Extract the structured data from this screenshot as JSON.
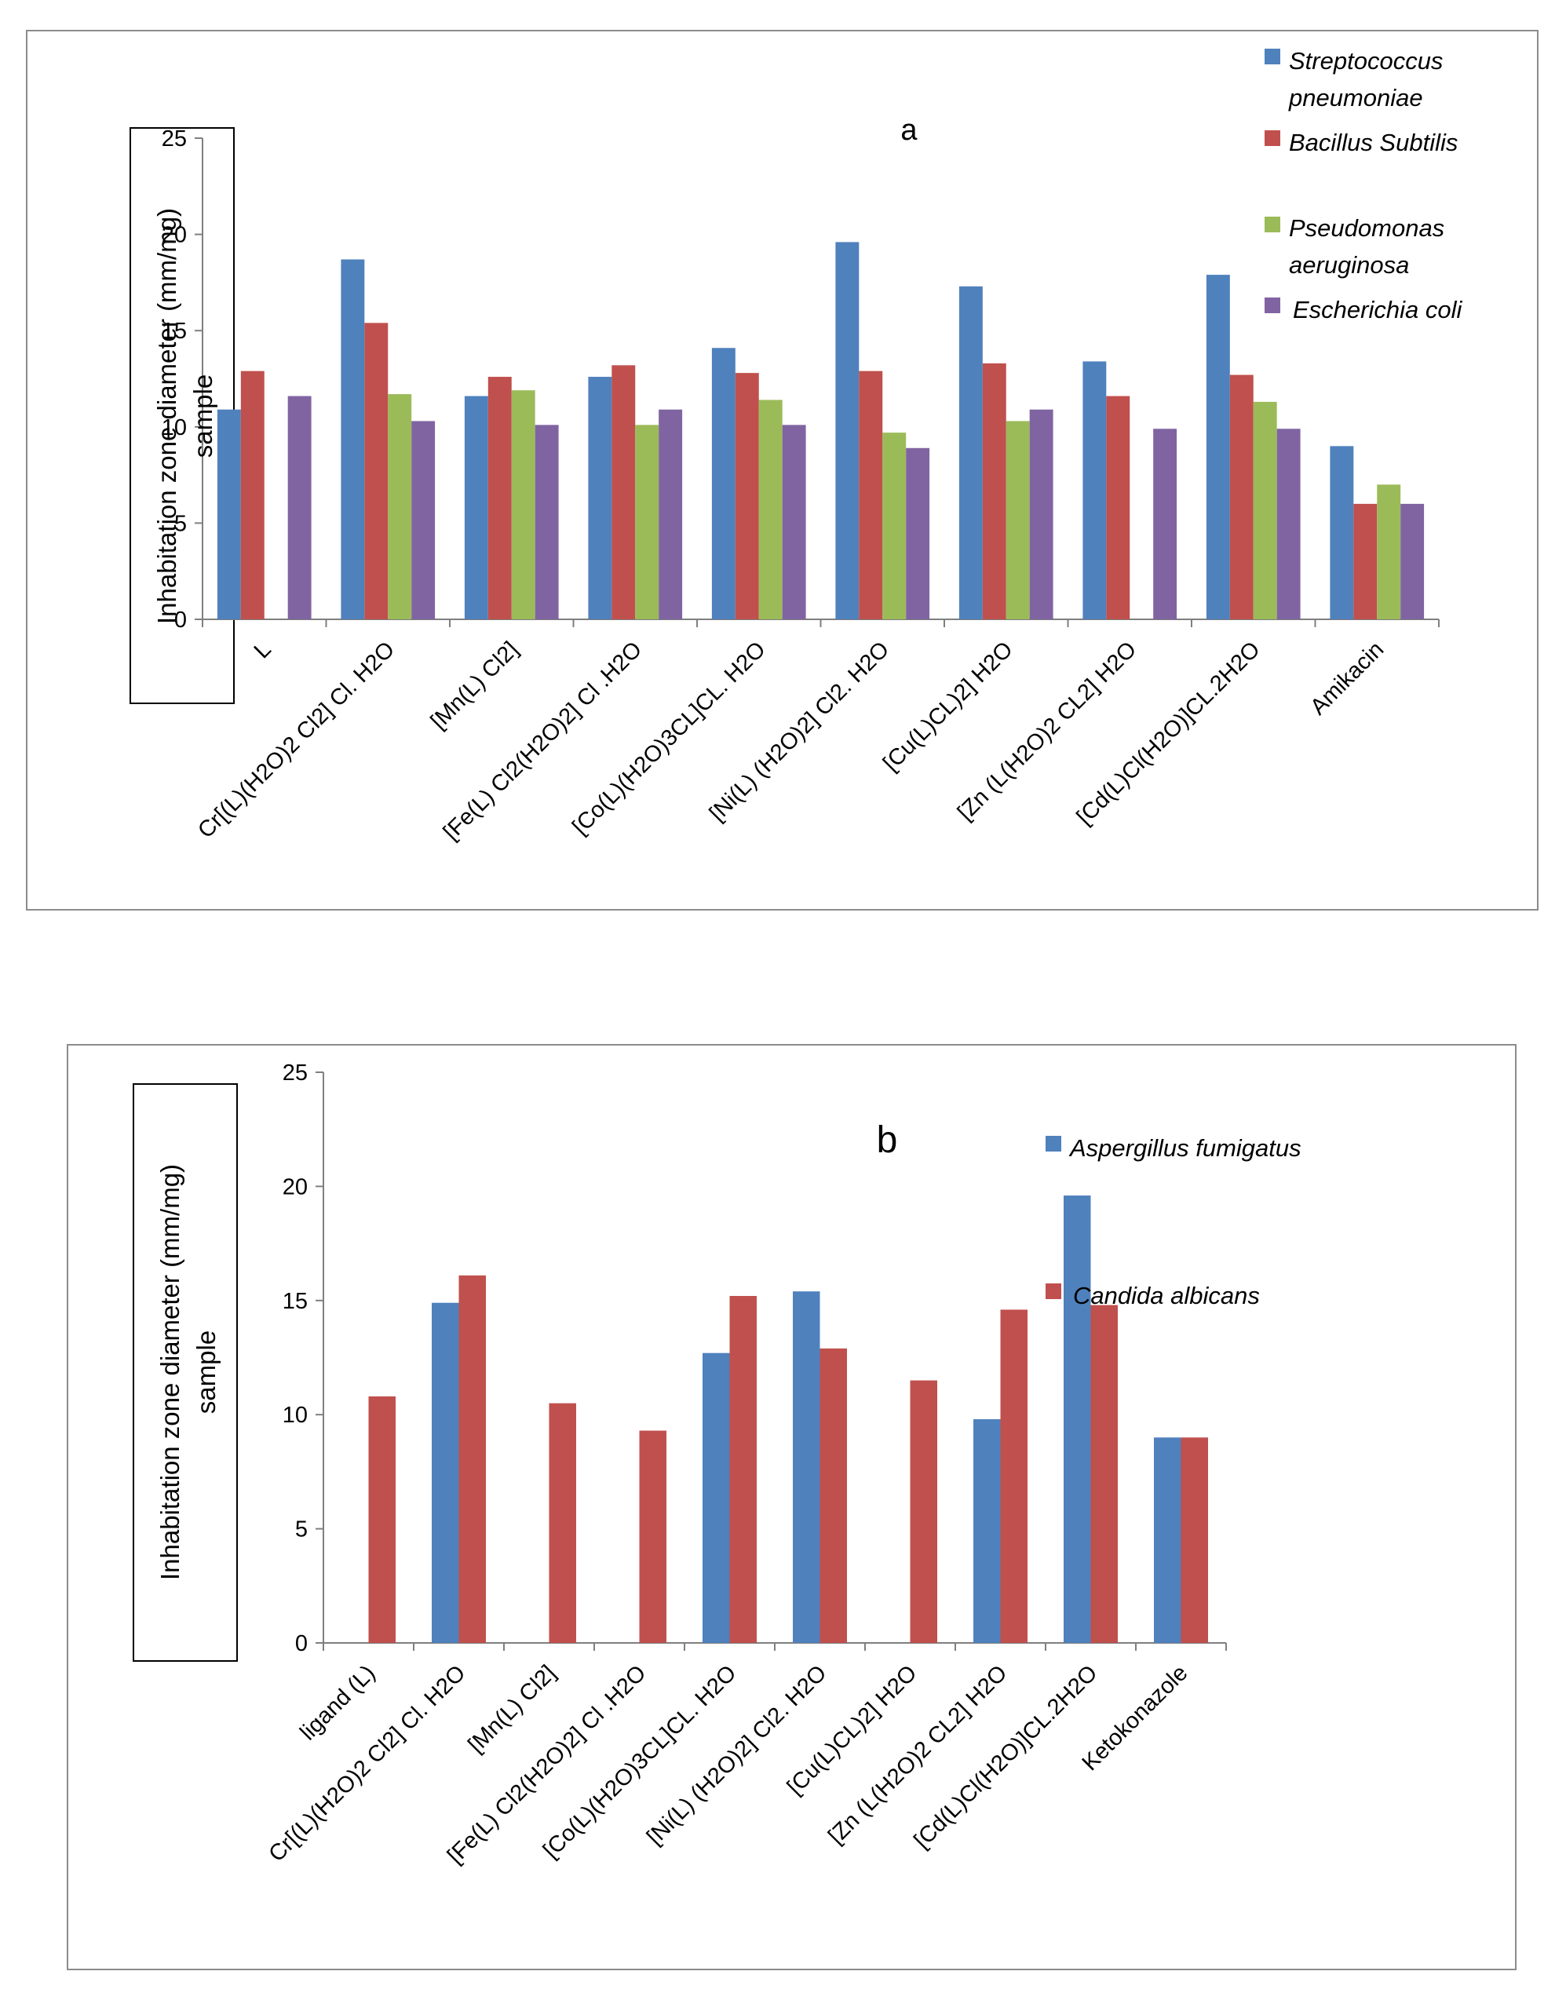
{
  "chart_data": [
    {
      "type": "bar",
      "panel_label": "a",
      "ylabel_lines": [
        "Inhabitation zone diameter (mm/mg)",
        "sample"
      ],
      "ylim": [
        0,
        25
      ],
      "yticks": [
        "0",
        "5",
        "10",
        "15",
        "20",
        "25"
      ],
      "categories": [
        "L",
        "Cr[(L)(H2O)2 Cl2] Cl. H2O",
        "[Mn(L) Cl2]",
        "[Fe(L) Cl2(H2O)2] Cl .H2O",
        "[Co(L)(H2O)3CL]CL. H2O",
        "[Ni(L) (H2O)2] Cl2. H2O",
        "[Cu(L)CL)2] H2O",
        "[Zn (L(H2O)2 CL2] H2O",
        "[Cd(L)Cl(H2O)]CL.2H2O",
        "Amikacin"
      ],
      "series": [
        {
          "name": "Streptococcus pneumoniae",
          "legend_lines": [
            "Streptococcus",
            "pneumoniae"
          ],
          "color": "#4f81bd",
          "values": [
            10.9,
            18.7,
            11.6,
            12.6,
            14.1,
            19.6,
            17.3,
            13.4,
            17.9,
            9.0
          ]
        },
        {
          "name": "Bacillus Subtilis",
          "legend_lines": [
            "Bacillus Subtilis"
          ],
          "color": "#c0504d",
          "values": [
            12.9,
            15.4,
            12.6,
            13.2,
            12.8,
            12.9,
            13.3,
            11.6,
            12.7,
            6.0
          ]
        },
        {
          "name": "Pseudomonas aeruginosa",
          "legend_lines": [
            "Pseudomonas",
            "aeruginosa"
          ],
          "color": "#9bbb59",
          "values": [
            0,
            11.7,
            11.9,
            10.1,
            11.4,
            9.7,
            10.3,
            0,
            11.3,
            7.0
          ]
        },
        {
          "name": "Escherichia coli",
          "legend_lines": [
            "Escherichia coli"
          ],
          "color": "#8064a2",
          "values": [
            11.6,
            10.3,
            10.1,
            10.9,
            10.1,
            8.9,
            10.9,
            9.9,
            9.9,
            6.0
          ]
        }
      ]
    },
    {
      "type": "bar",
      "panel_label": "b",
      "ylabel_lines": [
        "Inhabitation zone diameter (mm/mg)",
        "sample"
      ],
      "ylim": [
        0,
        25
      ],
      "yticks": [
        "0",
        "5",
        "10",
        "15",
        "20",
        "25"
      ],
      "categories": [
        "ligand (L)",
        "Cr[(L)(H2O)2 Cl2] Cl. H2O",
        "[Mn(L) Cl2]",
        "[Fe(L) Cl2(H2O)2] Cl .H2O",
        "[Co(L)(H2O)3CL]CL. H2O",
        "[Ni(L) (H2O)2] Cl2. H2O",
        "[Cu(L)CL)2] H2O",
        "[Zn (L(H2O)2 CL2] H2O",
        "[Cd(L)Cl(H2O)]CL.2H2O",
        "Ketokonazole"
      ],
      "series": [
        {
          "name": "Aspergillus fumigatus",
          "legend_lines": [
            "Aspergillus fumigatus"
          ],
          "color": "#4f81bd",
          "values": [
            0,
            14.9,
            0,
            0,
            12.7,
            15.4,
            0,
            9.8,
            19.6,
            9.0
          ]
        },
        {
          "name": "Candida albicans",
          "legend_lines": [
            "Candida albicans"
          ],
          "color": "#c0504d",
          "values": [
            10.8,
            16.1,
            10.5,
            9.3,
            15.2,
            12.9,
            11.5,
            14.6,
            14.8,
            9.0
          ]
        }
      ]
    }
  ]
}
